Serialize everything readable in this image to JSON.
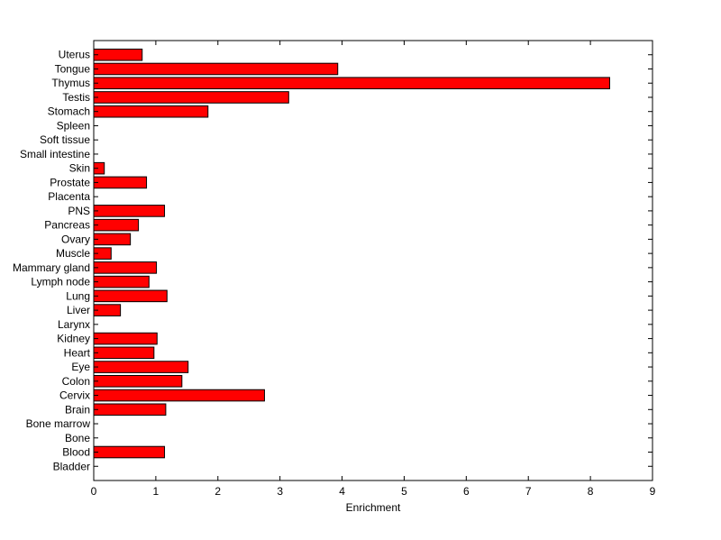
{
  "chart_data": {
    "type": "bar",
    "orientation": "horizontal",
    "title": "",
    "xlabel": "Enrichment",
    "ylabel": "",
    "xlim": [
      0,
      9
    ],
    "xticks": [
      "0",
      "1",
      "2",
      "3",
      "4",
      "5",
      "6",
      "7",
      "8",
      "9"
    ],
    "grid": false,
    "categories": [
      "Uterus",
      "Tongue",
      "Thymus",
      "Testis",
      "Stomach",
      "Spleen",
      "Soft tissue",
      "Small intestine",
      "Skin",
      "Prostate",
      "Placenta",
      "PNS",
      "Pancreas",
      "Ovary",
      "Muscle",
      "Mammary gland",
      "Lymph node",
      "Lung",
      "Liver",
      "Larynx",
      "Kidney",
      "Heart",
      "Eye",
      "Colon",
      "Cervix",
      "Brain",
      "Bone marrow",
      "Bone",
      "Blood",
      "Bladder"
    ],
    "values": [
      0.78,
      3.93,
      8.31,
      3.14,
      1.84,
      0,
      0,
      0,
      0.17,
      0.85,
      0,
      1.14,
      0.72,
      0.59,
      0.28,
      1.01,
      0.89,
      1.18,
      0.43,
      0,
      1.02,
      0.97,
      1.52,
      1.42,
      2.75,
      1.16,
      0,
      0,
      1.14,
      0
    ],
    "colors": {
      "bar": "#ff0000",
      "edge": "#000000"
    }
  }
}
